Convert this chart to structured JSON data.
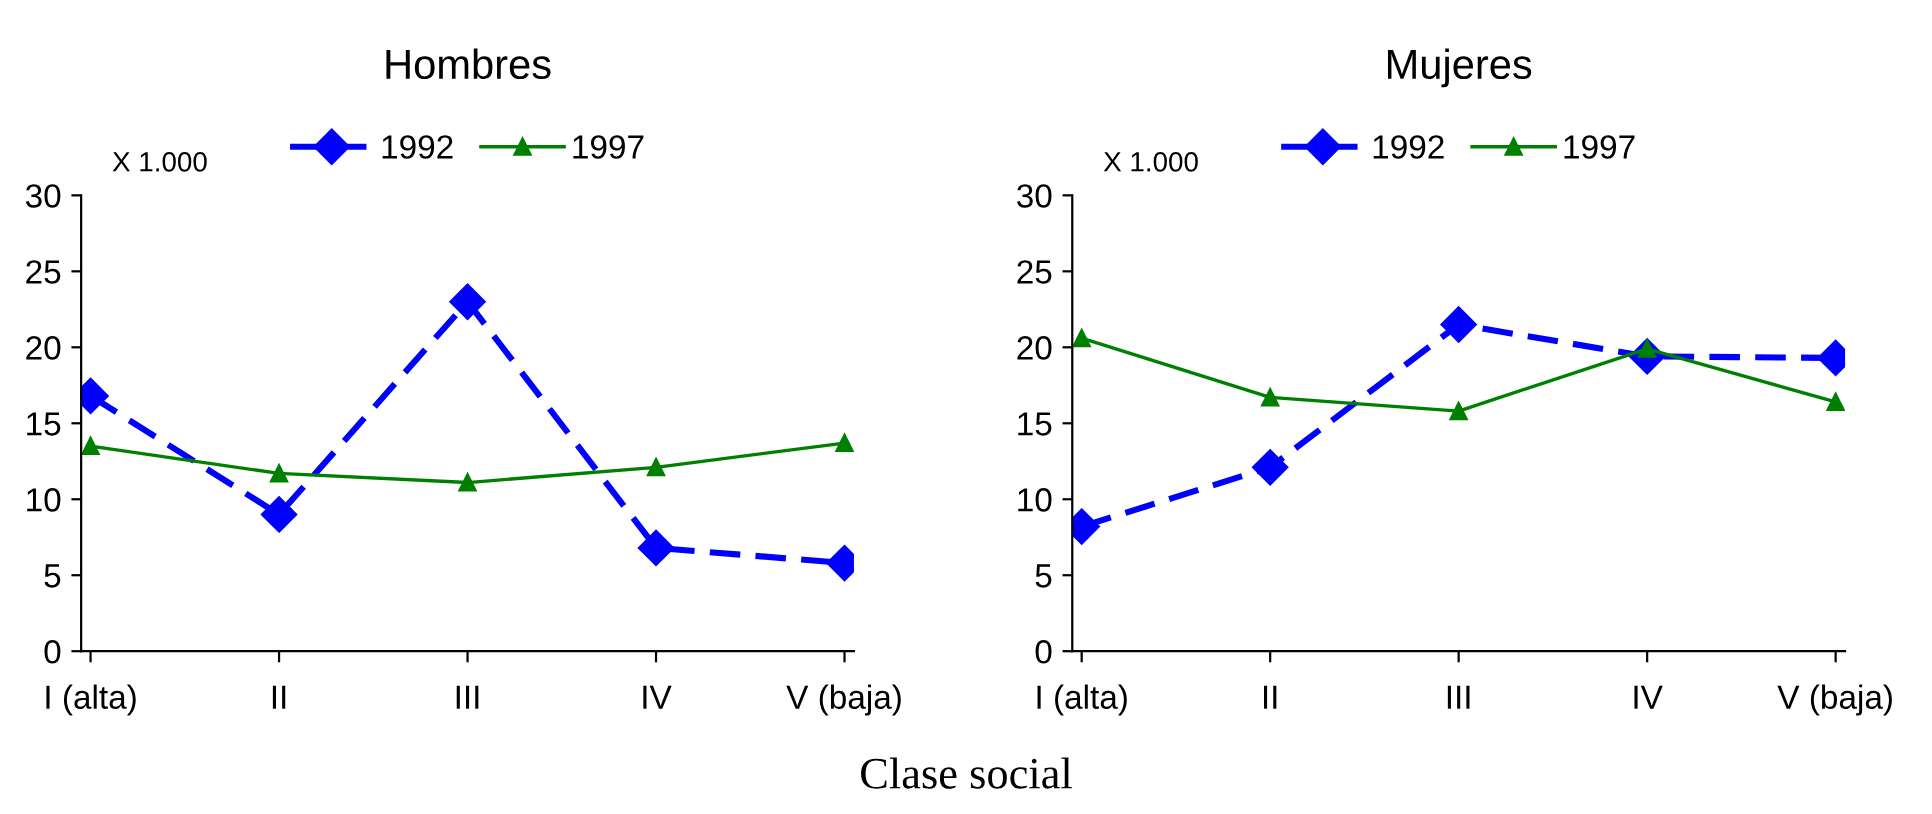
{
  "chart_data": [
    {
      "type": "line",
      "title": "Hombres",
      "categories": [
        "I (alta)",
        "II",
        "III",
        "IV",
        "V (baja)"
      ],
      "ylim": [
        0,
        30
      ],
      "yticks": [
        0,
        5,
        10,
        15,
        20,
        25,
        30
      ],
      "grid": false,
      "legend": "top",
      "annotations": [
        "X 1.000"
      ],
      "series": [
        {
          "name": "1992",
          "color": "#0000ff",
          "marker": "diamond",
          "line_style": "dashed",
          "values": [
            16.8,
            9.0,
            23.0,
            6.8,
            5.8
          ]
        },
        {
          "name": "1997",
          "color": "#008000",
          "marker": "triangle",
          "line_style": "solid",
          "values": [
            13.5,
            11.7,
            11.1,
            12.1,
            13.7
          ]
        }
      ]
    },
    {
      "type": "line",
      "title": "Mujeres",
      "categories": [
        "I (alta)",
        "II",
        "III",
        "IV",
        "V (baja)"
      ],
      "ylim": [
        0,
        30
      ],
      "yticks": [
        0,
        5,
        10,
        15,
        20,
        25,
        30
      ],
      "grid": false,
      "legend": "top",
      "annotations": [
        "X 1.000",
        "Clase social"
      ],
      "series": [
        {
          "name": "1992",
          "color": "#0000ff",
          "marker": "diamond",
          "line_style": "dashed",
          "values": [
            8.2,
            12.1,
            21.5,
            19.4,
            19.3
          ]
        },
        {
          "name": "1997",
          "color": "#008000",
          "marker": "triangle",
          "line_style": "solid",
          "values": [
            20.6,
            16.7,
            15.8,
            19.9,
            16.4
          ]
        }
      ]
    }
  ]
}
